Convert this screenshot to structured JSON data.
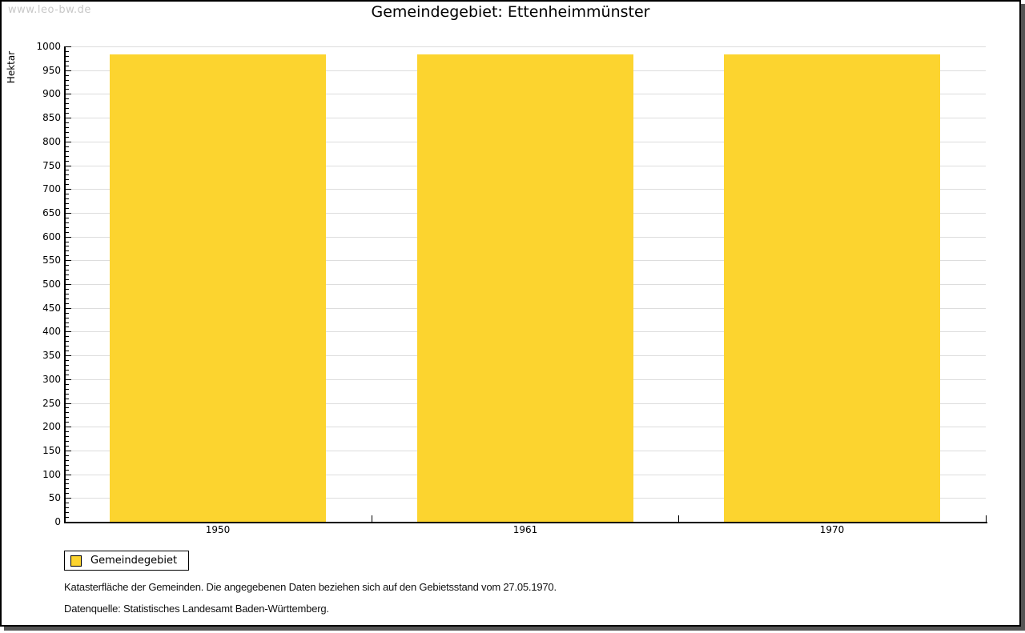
{
  "watermark": "www.leo-bw.de",
  "title": "Gemeindegebiet: Ettenheimmünster",
  "chart_data": {
    "type": "bar",
    "title": "Gemeindegebiet: Ettenheimmünster",
    "categories": [
      "1950",
      "1961",
      "1970"
    ],
    "series": [
      {
        "name": "Gemeindegebiet",
        "values": [
          983,
          983,
          983
        ],
        "color": "#FCD42F"
      }
    ],
    "xlabel": "",
    "ylabel": "Hektar",
    "ylim": [
      0,
      1000
    ],
    "ytick_major_step": 50,
    "ytick_minor_step": 10,
    "grid": true,
    "grid_color": "#dddddd",
    "legend_position": "bottom-left"
  },
  "legend": {
    "items": [
      {
        "label": "Gemeindegebiet",
        "color": "#FCD42F"
      }
    ]
  },
  "footnotes": [
    "Katasterfläche der Gemeinden. Die angegebenen Daten beziehen sich auf den Gebietsstand vom 27.05.1970.",
    "Datenquelle: Statistisches Landesamt Baden-Württemberg."
  ]
}
